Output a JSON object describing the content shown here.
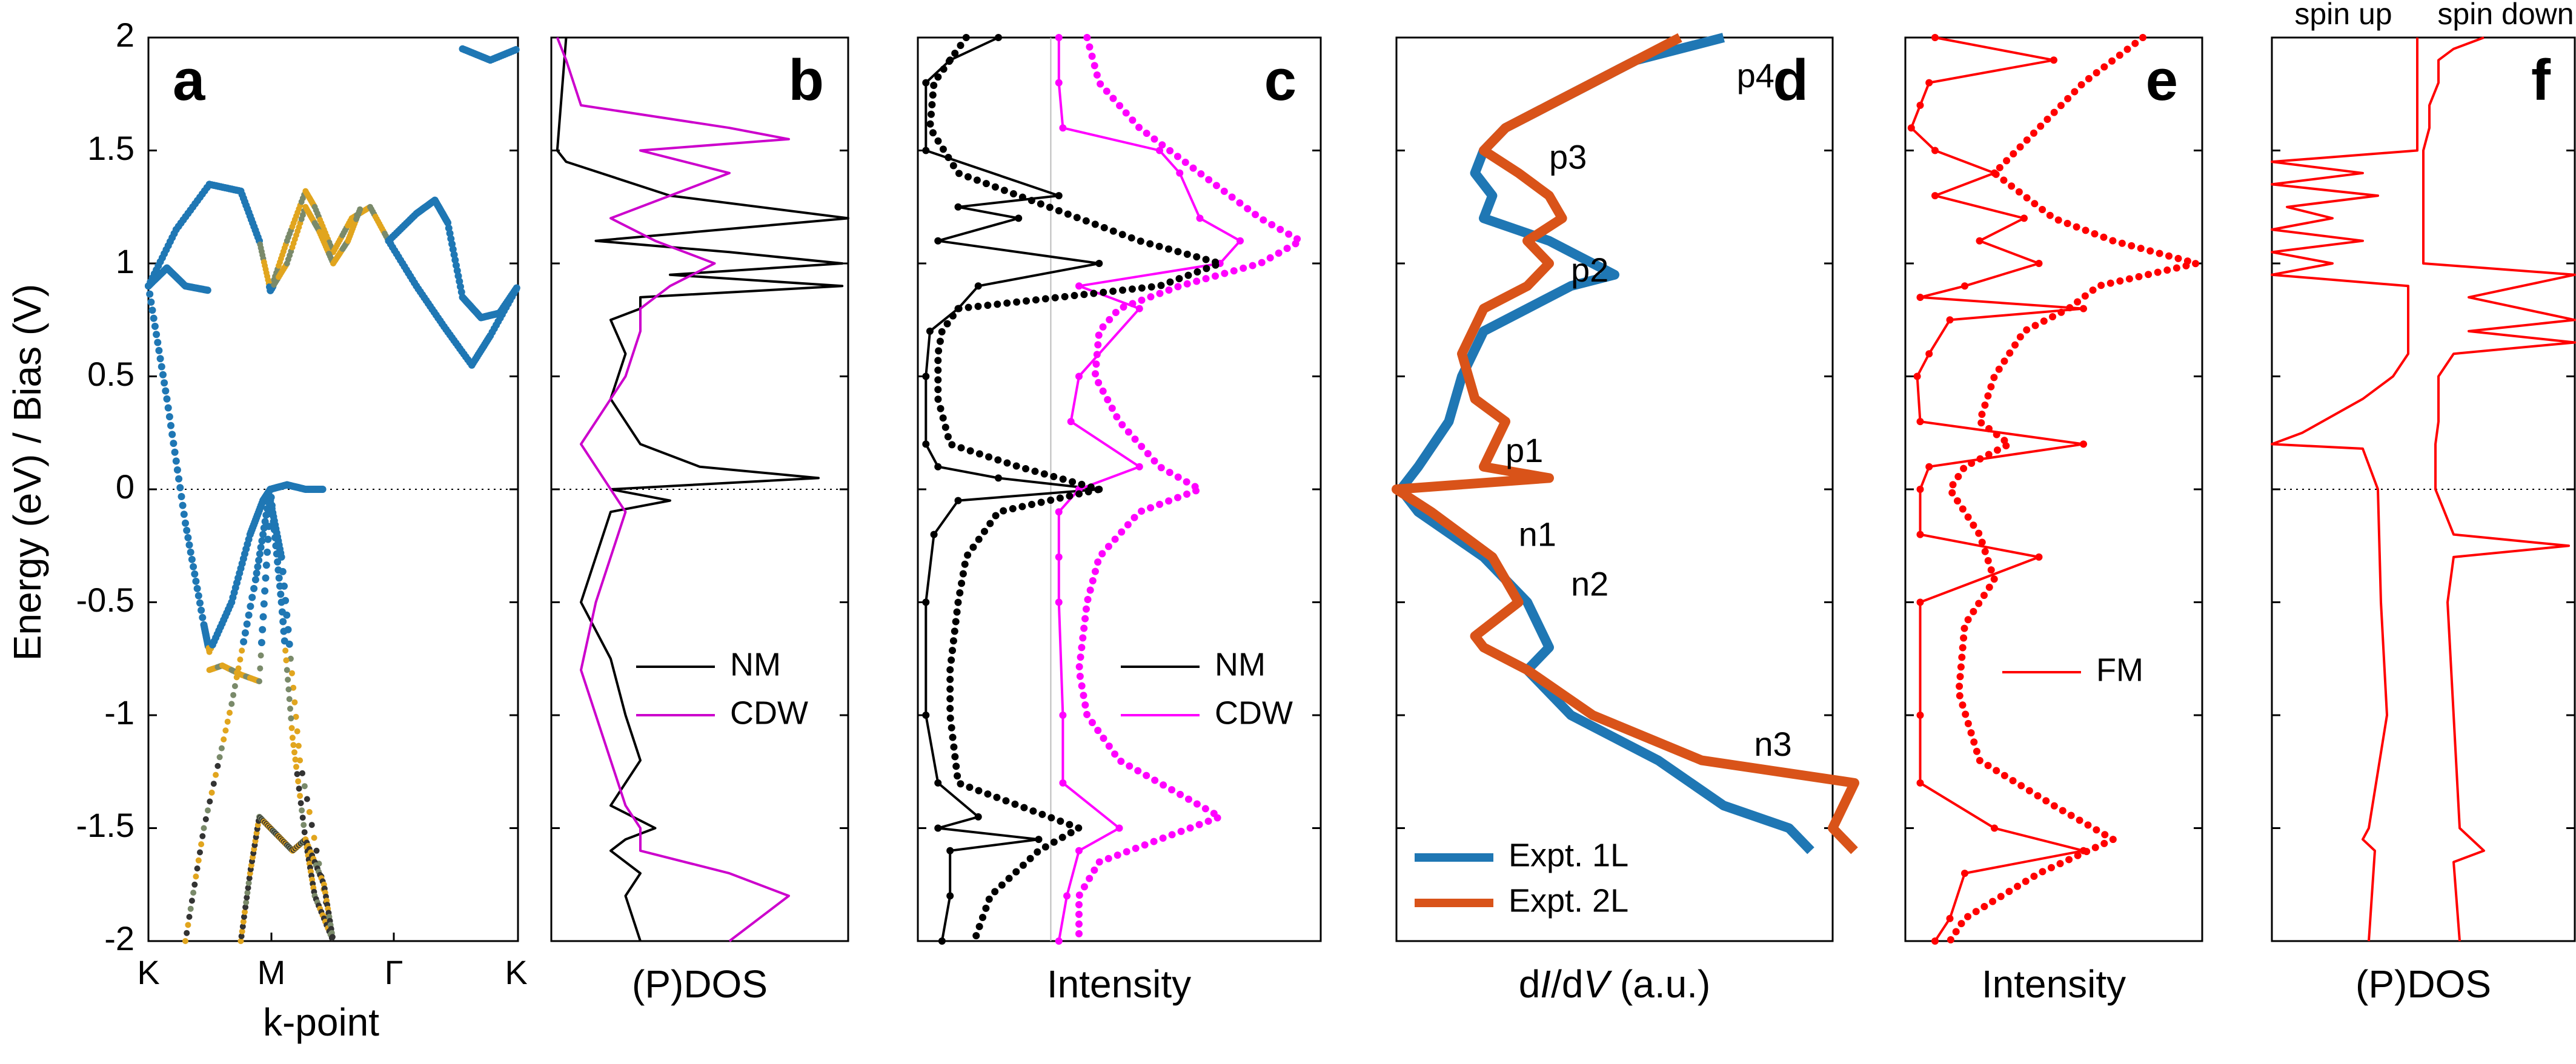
{
  "figure": {
    "y_axis_label": "Energy (eV) / Bias (V)",
    "y_ticks": [
      "2",
      "1.5",
      "1",
      "0.5",
      "0",
      "-0.5",
      "-1",
      "-1.5",
      "-2"
    ]
  },
  "chart_data": [
    {
      "panel": "a",
      "type": "scatter",
      "xlabel": "k-point",
      "x_ticks": [
        "K",
        "M",
        "Γ",
        "K"
      ],
      "ylim": [
        -2,
        2
      ],
      "fermi_line": 0,
      "colors": {
        "main": "#1f77b4",
        "projected": "#e1a51e",
        "mixed": "#7a8a6a"
      },
      "series": [
        {
          "x": [
            0,
            0.15,
            0.33,
            0.5,
            0.6,
            0.66
          ],
          "y": [
            0.9,
            1.15,
            1.35,
            1.32,
            1.1,
            0.88
          ]
        },
        {
          "x": [
            0,
            0.1,
            0.2,
            0.33
          ],
          "y": [
            0.9,
            0.98,
            0.9,
            0.88
          ]
        },
        {
          "x": [
            0.66,
            0.75,
            0.85,
            0.9,
            1.0,
            1.1,
            1.2,
            1.3
          ],
          "y": [
            0.88,
            1.1,
            1.32,
            1.25,
            1.05,
            1.2,
            1.25,
            1.1
          ]
        },
        {
          "x": [
            0.66,
            0.75,
            0.85,
            0.92,
            1.0,
            1.08,
            1.15
          ],
          "y": [
            0.88,
            1.0,
            1.25,
            1.15,
            1.0,
            1.1,
            1.25
          ]
        },
        {
          "x": [
            1.3,
            1.45,
            1.55,
            1.62,
            1.7,
            1.8,
            1.9,
            2.0
          ],
          "y": [
            1.1,
            1.22,
            1.28,
            1.18,
            0.85,
            0.76,
            0.78,
            0.9
          ]
        },
        {
          "x": [
            1.3,
            1.45,
            1.6,
            1.75,
            1.85,
            2.0
          ],
          "y": [
            1.1,
            0.9,
            0.72,
            0.55,
            0.68,
            0.9
          ]
        },
        {
          "x": [
            0,
            0.1,
            0.2,
            0.3,
            0.33
          ],
          "y": [
            0.9,
            0.4,
            -0.15,
            -0.6,
            -0.72
          ]
        },
        {
          "x": [
            0.33,
            0.45,
            0.55,
            0.62,
            0.66
          ],
          "y": [
            -0.72,
            -0.5,
            -0.2,
            -0.05,
            0.0
          ]
        },
        {
          "x": [
            0.66,
            0.75,
            0.85,
            0.95
          ],
          "y": [
            0.0,
            0.02,
            0.0,
            0.0
          ]
        },
        {
          "x": [
            0.33,
            0.4,
            0.5,
            0.6,
            0.66,
            0.72,
            0.82,
            1.0
          ],
          "y": [
            -0.8,
            -0.78,
            -0.82,
            -0.85,
            -0.05,
            -0.3,
            -1.2,
            -2.0
          ]
        },
        {
          "x": [
            0.2,
            0.3,
            0.45,
            0.58,
            0.66
          ],
          "y": [
            -2.0,
            -1.5,
            -0.95,
            -0.4,
            0.0
          ]
        },
        {
          "x": [
            0.66,
            0.72,
            0.78,
            0.85,
            0.9,
            1.0
          ],
          "y": [
            0.0,
            -0.5,
            -1.1,
            -1.55,
            -1.8,
            -2.0
          ]
        },
        {
          "x": [
            0.5,
            0.55,
            0.6,
            0.66,
            0.72,
            0.78,
            0.85,
            0.95,
            1.0
          ],
          "y": [
            -2.0,
            -1.7,
            -1.45,
            -1.5,
            -1.55,
            -1.6,
            -1.55,
            -1.75,
            -2.0
          ]
        },
        {
          "x": [
            1.7,
            1.85,
            2.0
          ],
          "y": [
            1.95,
            1.9,
            1.95
          ]
        }
      ]
    },
    {
      "panel": "b",
      "type": "line",
      "xlabel": "(P)DOS",
      "legend": "lower-right",
      "series": [
        {
          "name": "NM",
          "color": "#000000",
          "y": [
            2.0,
            1.5,
            1.45,
            1.3,
            1.2,
            1.1,
            1.05,
            1.0,
            0.95,
            0.9,
            0.85,
            0.8,
            0.75,
            0.6,
            0.4,
            0.2,
            0.1,
            0.05,
            0.0,
            -0.05,
            -0.1,
            -0.3,
            -0.5,
            -0.75,
            -1.0,
            -1.2,
            -1.4,
            -1.5,
            -1.55,
            -1.6,
            -1.7,
            -1.8,
            -2.0
          ],
          "x": [
            0.05,
            0.02,
            0.05,
            0.4,
            1.0,
            0.15,
            0.6,
            0.98,
            0.4,
            0.98,
            0.3,
            0.3,
            0.2,
            0.25,
            0.2,
            0.3,
            0.5,
            0.9,
            0.2,
            0.4,
            0.2,
            0.15,
            0.1,
            0.2,
            0.25,
            0.3,
            0.2,
            0.35,
            0.25,
            0.2,
            0.3,
            0.25,
            0.3
          ]
        },
        {
          "name": "CDW",
          "color": "#cc00cc",
          "y": [
            2.0,
            1.9,
            1.7,
            1.6,
            1.55,
            1.5,
            1.4,
            1.3,
            1.2,
            1.1,
            1.0,
            0.9,
            0.8,
            0.7,
            0.5,
            0.4,
            0.3,
            0.2,
            0.1,
            0.0,
            -0.1,
            -0.3,
            -0.5,
            -0.8,
            -1.0,
            -1.2,
            -1.4,
            -1.5,
            -1.6,
            -1.7,
            -1.8,
            -1.9,
            -2.0
          ],
          "x": [
            0.02,
            0.05,
            0.1,
            0.6,
            0.8,
            0.3,
            0.6,
            0.4,
            0.2,
            0.35,
            0.55,
            0.4,
            0.3,
            0.3,
            0.25,
            0.2,
            0.15,
            0.1,
            0.15,
            0.2,
            0.25,
            0.2,
            0.15,
            0.1,
            0.15,
            0.2,
            0.25,
            0.3,
            0.3,
            0.6,
            0.8,
            0.7,
            0.6
          ]
        }
      ]
    },
    {
      "panel": "c",
      "type": "line",
      "xlabel": "Intensity",
      "legend": "lower-right",
      "series": [
        {
          "name": "NM",
          "color": "#000000",
          "style": "line-dot",
          "y": [
            2.0,
            1.9,
            1.8,
            1.5,
            1.3,
            1.25,
            1.2,
            1.1,
            1.0,
            0.9,
            0.8,
            0.7,
            0.5,
            0.2,
            0.1,
            0.05,
            0.0,
            -0.05,
            -0.2,
            -0.5,
            -1.0,
            -1.3,
            -1.45,
            -1.5,
            -1.55,
            -1.6,
            -1.8,
            -2.0
          ],
          "x": [
            0.2,
            0.08,
            0.02,
            0.02,
            0.35,
            0.1,
            0.25,
            0.05,
            0.45,
            0.15,
            0.1,
            0.03,
            0.02,
            0.02,
            0.05,
            0.2,
            0.45,
            0.1,
            0.04,
            0.02,
            0.02,
            0.05,
            0.15,
            0.05,
            0.3,
            0.08,
            0.08,
            0.06
          ]
        },
        {
          "name": "CDW",
          "color": "#ff00ff",
          "style": "line-dot",
          "y": [
            2.0,
            1.8,
            1.6,
            1.5,
            1.4,
            1.2,
            1.1,
            1.0,
            0.9,
            0.8,
            0.5,
            0.3,
            0.1,
            0.0,
            -0.1,
            -0.3,
            -0.5,
            -1.0,
            -1.3,
            -1.5,
            -1.6,
            -1.8,
            -2.0
          ],
          "x": [
            0.35,
            0.35,
            0.36,
            0.6,
            0.65,
            0.7,
            0.8,
            0.75,
            0.4,
            0.55,
            0.4,
            0.38,
            0.55,
            0.4,
            0.35,
            0.35,
            0.35,
            0.36,
            0.36,
            0.5,
            0.4,
            0.37,
            0.35
          ]
        },
        {
          "name": "",
          "color": "#000000",
          "style": "dotted",
          "y": [
            2.0,
            1.8,
            1.6,
            1.4,
            1.3,
            1.2,
            1.1,
            1.0,
            0.9,
            0.8,
            0.7,
            0.6,
            0.4,
            0.2,
            0.1,
            0.0,
            -0.1,
            -0.3,
            -0.5,
            -0.8,
            -1.0,
            -1.3,
            -1.4,
            -1.5,
            -1.6,
            -1.8,
            -2.0
          ],
          "x": [
            0.12,
            0.04,
            0.03,
            0.1,
            0.25,
            0.4,
            0.55,
            0.75,
            0.6,
            0.1,
            0.06,
            0.05,
            0.05,
            0.08,
            0.25,
            0.45,
            0.2,
            0.12,
            0.1,
            0.08,
            0.08,
            0.1,
            0.25,
            0.4,
            0.3,
            0.18,
            0.14
          ]
        },
        {
          "name": "",
          "color": "#ff00ff",
          "style": "dotted",
          "y": [
            2.0,
            1.8,
            1.6,
            1.4,
            1.2,
            1.1,
            1.0,
            0.9,
            0.8,
            0.7,
            0.5,
            0.3,
            0.1,
            0.0,
            -0.1,
            -0.3,
            -0.5,
            -0.8,
            -1.0,
            -1.2,
            -1.35,
            -1.45,
            -1.55,
            -1.65,
            -1.8,
            -2.0
          ],
          "x": [
            0.42,
            0.45,
            0.55,
            0.7,
            0.85,
            0.95,
            0.85,
            0.65,
            0.5,
            0.45,
            0.44,
            0.5,
            0.6,
            0.7,
            0.55,
            0.45,
            0.42,
            0.4,
            0.42,
            0.5,
            0.65,
            0.75,
            0.6,
            0.45,
            0.4,
            0.4
          ]
        }
      ],
      "vline_x": 0.33
    },
    {
      "panel": "d",
      "type": "line",
      "xlabel_prefix": "d",
      "xlabel_italic1": "I",
      "xlabel_mid": "/d",
      "xlabel_italic2": "V",
      "xlabel_suffix": " (a.u.)",
      "legend": "lower-left",
      "series": [
        {
          "name": "Expt. 1L",
          "color": "#1f77b4",
          "y": [
            2.0,
            1.9,
            1.8,
            1.7,
            1.6,
            1.5,
            1.4,
            1.3,
            1.2,
            1.1,
            1.0,
            0.95,
            0.9,
            0.8,
            0.7,
            0.5,
            0.3,
            0.1,
            0.0,
            -0.1,
            -0.3,
            -0.5,
            -0.7,
            -0.8,
            -1.0,
            -1.2,
            -1.4,
            -1.5,
            -1.6
          ],
          "x": [
            0.75,
            0.55,
            0.45,
            0.35,
            0.25,
            0.2,
            0.18,
            0.22,
            0.2,
            0.35,
            0.45,
            0.5,
            0.4,
            0.3,
            0.2,
            0.15,
            0.12,
            0.05,
            0.01,
            0.05,
            0.2,
            0.3,
            0.35,
            0.3,
            0.4,
            0.6,
            0.75,
            0.9,
            0.95
          ]
        },
        {
          "name": "Expt. 2L",
          "color": "#d95319",
          "y": [
            2.0,
            1.9,
            1.8,
            1.7,
            1.6,
            1.5,
            1.4,
            1.3,
            1.2,
            1.1,
            1.0,
            0.9,
            0.8,
            0.6,
            0.4,
            0.3,
            0.1,
            0.05,
            0.0,
            -0.1,
            -0.3,
            -0.5,
            -0.65,
            -0.7,
            -0.8,
            -1.0,
            -1.2,
            -1.3,
            -1.5,
            -1.6
          ],
          "x": [
            0.65,
            0.55,
            0.45,
            0.35,
            0.25,
            0.2,
            0.28,
            0.35,
            0.38,
            0.3,
            0.35,
            0.3,
            0.2,
            0.15,
            0.18,
            0.25,
            0.2,
            0.35,
            0.0,
            0.08,
            0.22,
            0.28,
            0.18,
            0.2,
            0.3,
            0.45,
            0.7,
            1.05,
            1.0,
            1.05
          ]
        }
      ],
      "annotations": [
        {
          "text": "p4",
          "x": 0.78,
          "y": 1.78
        },
        {
          "text": "p3",
          "x": 0.35,
          "y": 1.42
        },
        {
          "text": "p2",
          "x": 0.4,
          "y": 0.92
        },
        {
          "text": "p1",
          "x": 0.25,
          "y": 0.12
        },
        {
          "text": "n1",
          "x": 0.28,
          "y": -0.25
        },
        {
          "text": "n2",
          "x": 0.4,
          "y": -0.47
        },
        {
          "text": "n3",
          "x": 0.82,
          "y": -1.18
        }
      ]
    },
    {
      "panel": "e",
      "type": "line",
      "xlabel": "Intensity",
      "legend": "lower-right",
      "series": [
        {
          "name": "FM",
          "color": "#ff0000",
          "style": "line-dot",
          "y": [
            2.0,
            1.9,
            1.8,
            1.7,
            1.6,
            1.5,
            1.4,
            1.3,
            1.2,
            1.1,
            1.0,
            0.9,
            0.85,
            0.8,
            0.75,
            0.6,
            0.5,
            0.3,
            0.2,
            0.1,
            0.0,
            -0.2,
            -0.3,
            -0.5,
            -1.0,
            -1.3,
            -1.5,
            -1.6,
            -1.7,
            -1.9,
            -2.0
          ],
          "x": [
            0.1,
            0.5,
            0.08,
            0.05,
            0.02,
            0.1,
            0.3,
            0.1,
            0.4,
            0.25,
            0.45,
            0.2,
            0.05,
            0.6,
            0.15,
            0.08,
            0.04,
            0.05,
            0.6,
            0.08,
            0.05,
            0.05,
            0.45,
            0.05,
            0.05,
            0.05,
            0.3,
            0.6,
            0.2,
            0.15,
            0.1
          ]
        },
        {
          "name": "",
          "color": "#ff0000",
          "style": "dotted",
          "y": [
            2.0,
            1.8,
            1.6,
            1.4,
            1.2,
            1.1,
            1.0,
            0.9,
            0.8,
            0.7,
            0.5,
            0.3,
            0.2,
            0.1,
            0.0,
            -0.2,
            -0.4,
            -0.6,
            -0.9,
            -1.2,
            -1.4,
            -1.55,
            -1.7,
            -1.9,
            -2.0
          ],
          "x": [
            0.8,
            0.6,
            0.45,
            0.3,
            0.5,
            0.7,
            0.98,
            0.65,
            0.55,
            0.4,
            0.3,
            0.25,
            0.35,
            0.2,
            0.15,
            0.25,
            0.3,
            0.2,
            0.18,
            0.25,
            0.5,
            0.7,
            0.45,
            0.2,
            0.15
          ]
        }
      ]
    },
    {
      "panel": "f",
      "type": "line",
      "xlabel": "(P)DOS",
      "header_left": "spin up",
      "header_right": "spin down",
      "center_x": 0.48,
      "series": [
        {
          "name": "spin up",
          "color": "#ff0000",
          "y": [
            2.0,
            1.5,
            1.45,
            1.4,
            1.35,
            1.3,
            1.25,
            1.2,
            1.15,
            1.1,
            1.05,
            1.0,
            0.95,
            0.9,
            0.6,
            0.5,
            0.4,
            0.25,
            0.2,
            0.18,
            0.0,
            -0.5,
            -1.0,
            -1.5,
            -1.55,
            -1.6,
            -2.0
          ],
          "x": [
            0.48,
            0.48,
            0.0,
            0.3,
            0.0,
            0.35,
            0.05,
            0.2,
            0.0,
            0.3,
            0.0,
            0.2,
            0.0,
            0.45,
            0.45,
            0.4,
            0.3,
            0.1,
            0.0,
            0.3,
            0.35,
            0.36,
            0.38,
            0.32,
            0.3,
            0.34,
            0.32
          ]
        },
        {
          "name": "spin down",
          "color": "#ff0000",
          "y": [
            2.0,
            1.95,
            1.9,
            1.8,
            1.7,
            1.6,
            1.5,
            1.0,
            0.95,
            0.85,
            0.75,
            0.7,
            0.65,
            0.6,
            0.5,
            0.3,
            0.2,
            0.0,
            -0.2,
            -0.25,
            -0.3,
            -0.5,
            -1.0,
            -1.5,
            -1.6,
            -1.65,
            -2.0
          ],
          "x": [
            0.7,
            0.6,
            0.55,
            0.55,
            0.52,
            0.52,
            0.5,
            0.5,
            1.0,
            0.65,
            1.0,
            0.65,
            1.0,
            0.6,
            0.55,
            0.55,
            0.54,
            0.54,
            0.6,
            0.98,
            0.6,
            0.58,
            0.6,
            0.62,
            0.7,
            0.6,
            0.62
          ]
        }
      ]
    }
  ]
}
